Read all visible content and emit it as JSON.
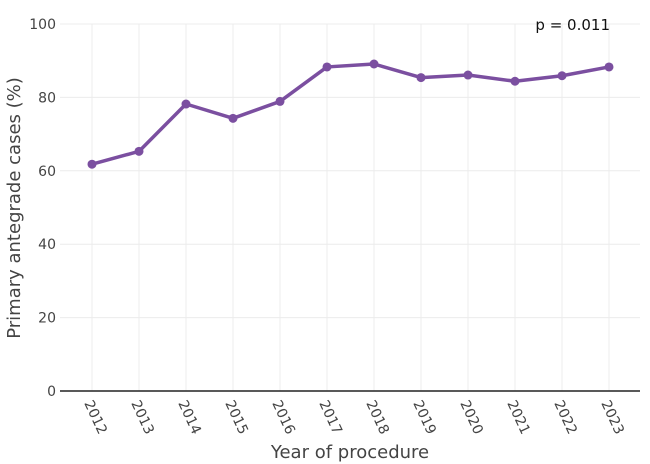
{
  "chart_data": {
    "type": "line",
    "x": [
      "2012",
      "2013",
      "2014",
      "2015",
      "2016",
      "2017",
      "2018",
      "2019",
      "2020",
      "2021",
      "2022",
      "2023"
    ],
    "series": [
      {
        "values": [
          61.8,
          65.3,
          78.2,
          74.3,
          78.9,
          88.3,
          89.1,
          85.4,
          86.1,
          84.4,
          85.9,
          88.3
        ]
      }
    ],
    "xlabel": "Year of procedure",
    "ylabel": "Primary antegrade cases (%)",
    "ylim": [
      0,
      100
    ],
    "yticks": [
      0,
      20,
      40,
      60,
      80,
      100
    ],
    "grid": true,
    "annotation": "p = 0.011",
    "colors": {
      "line": "#7b4fa0",
      "grid": "#ececec",
      "axis": "#222222",
      "text": "#444444"
    }
  }
}
